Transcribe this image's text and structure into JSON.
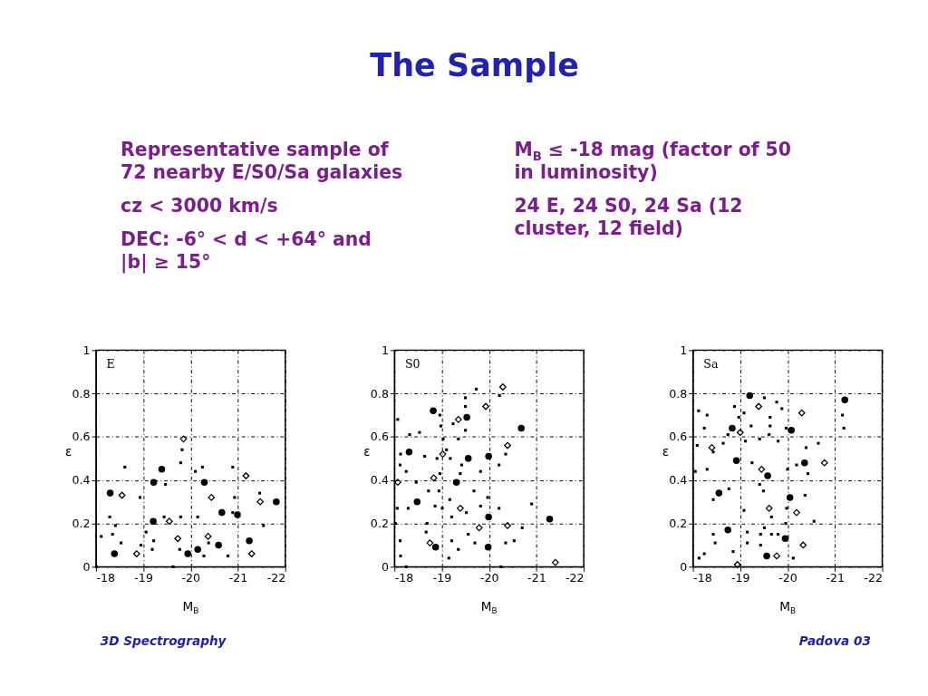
{
  "chart_data": [
    {
      "type": "other",
      "title": "The Sample",
      "annotations": [
        "Representative sample of 72 nearby E/S0/Sa galaxies",
        "cz < 3000 km/s",
        "DEC: -6° < d < +64° and |b| ≥ 15°",
        "M$_{B}$ ≤ -18 mag (factor of 50 in luminosity)",
        "24 E, 24 S0, 24 Sa (12 cluster, 12 field)"
      ]
    },
    {
      "type": "scatter",
      "xlabel": "M$_{B}$",
      "ylabel": "ε",
      "xlim": [
        -18,
        -22
      ],
      "ylim": [
        0,
        1
      ],
      "xticks": [
        -18,
        -19,
        -20,
        -21,
        -22
      ],
      "yticks": [
        0,
        0.2,
        0.4,
        0.6,
        0.8,
        1
      ],
      "grid": true,
      "annotations": [
        "E"
      ],
      "series": [
        {
          "color": "#000000",
          "marker": "circle",
          "x": [
            -18.3,
            -18.39,
            -19.22,
            -19.39,
            -19.21,
            -19.94,
            -20.15,
            -20.29,
            -20.59,
            -20.66,
            -20.99,
            -21.24,
            -21.81
          ],
          "values": [
            0.34,
            0.06,
            0.39,
            0.45,
            0.21,
            0.06,
            0.08,
            0.39,
            0.1,
            0.25,
            0.24,
            0.12,
            0.3
          ]
        },
        {
          "color": "#000000",
          "marker": "diamond",
          "x": [
            -19.85,
            -18.55,
            -18.86,
            -19.55,
            -19.73,
            -20.44,
            -20.37,
            -21.17,
            -21.47,
            -21.29
          ],
          "values": [
            0.59,
            0.33,
            0.06,
            0.21,
            0.13,
            0.32,
            0.14,
            0.42,
            0.3,
            0.06
          ]
        },
        {
          "color": "#000000",
          "marker": "square",
          "x": [
            -18.61,
            -19.82,
            -19.79,
            -20.1,
            -20.25,
            -19.47,
            -18.93,
            -20.89,
            -20.93,
            -21.46,
            -21.54,
            -18.29,
            -18.41,
            -18.11,
            -18.35,
            -18.53,
            -19.06,
            -19.22,
            -19.19,
            -19.44,
            -19.79,
            -19.77,
            -20.15,
            -20.28,
            -20.38,
            -20.79,
            -20.89,
            -18.95,
            -19.63,
            -18.01
          ],
          "values": [
            0.46,
            0.54,
            0.48,
            0.44,
            0.46,
            0.38,
            0.32,
            0.46,
            0.32,
            0.34,
            0.19,
            0.23,
            0.19,
            0.14,
            0.15,
            0.11,
            0.16,
            0.12,
            0.08,
            0.23,
            0.23,
            0.08,
            0.23,
            0.05,
            0.11,
            0.05,
            0.25,
            0.1,
            0.0,
            0.0
          ]
        }
      ]
    },
    {
      "type": "scatter",
      "xlabel": "M$_{B}$",
      "ylabel": "ε",
      "xlim": [
        -18,
        -22
      ],
      "ylim": [
        0,
        1
      ],
      "xticks": [
        -18,
        -19,
        -20,
        -21,
        -22
      ],
      "yticks": [
        0,
        0.2,
        0.4,
        0.6,
        0.8,
        1
      ],
      "grid": true,
      "annotations": [
        "S0"
      ],
      "series": [
        {
          "color": "#000000",
          "marker": "circle",
          "x": [
            -18.82,
            -19.53,
            -19.56,
            -19.99,
            -20.68,
            -18.48,
            -18.31,
            -19.31,
            -19.99,
            -19.98,
            -21.28,
            -18.87
          ],
          "values": [
            0.72,
            0.69,
            0.5,
            0.51,
            0.64,
            0.3,
            0.53,
            0.39,
            0.23,
            0.09,
            0.22,
            0.09
          ]
        },
        {
          "color": "#000000",
          "marker": "diamond",
          "x": [
            -20.29,
            -19.93,
            -19.35,
            -19.02,
            -18.83,
            -18.07,
            -20.39,
            -19.39,
            -19.79,
            -20.39,
            -21.4,
            -18.75
          ],
          "values": [
            0.83,
            0.74,
            0.68,
            0.52,
            0.41,
            0.39,
            0.56,
            0.27,
            0.18,
            0.19,
            0.02,
            0.11
          ]
        },
        {
          "color": "#000000",
          "marker": "square",
          "x": [
            -19.73,
            -19.5,
            -20.22,
            -19.5,
            -18.96,
            -18.98,
            -19.24,
            -19.5,
            -18.32,
            -18.53,
            -19.03,
            -19.35,
            -18.07,
            -18.13,
            -18.64,
            -19.1,
            -18.9,
            -19.18,
            -19.42,
            -20.21,
            -19.82,
            -20.35,
            -18.12,
            -18.25,
            -18.96,
            -19.39,
            -18.46,
            -18.72,
            -18.94,
            -19.17,
            -19.68,
            -19.97,
            -19.82,
            -20.21,
            -18.86,
            -19.01,
            -18.06,
            -18.02,
            -18.29,
            -18.69,
            -19.21,
            -19.52,
            -19.56,
            -19.21,
            -19.7,
            -20.35,
            -20.53,
            -19.15,
            -19.35,
            -20.25,
            -18.12,
            -18.13,
            -20.9,
            -20.7,
            -18.25,
            -18.67
          ],
          "values": [
            0.82,
            0.78,
            0.79,
            0.74,
            0.7,
            0.65,
            0.66,
            0.63,
            0.61,
            0.62,
            0.59,
            0.59,
            0.68,
            0.52,
            0.51,
            0.54,
            0.5,
            0.5,
            0.47,
            0.47,
            0.44,
            0.52,
            0.47,
            0.44,
            0.43,
            0.43,
            0.39,
            0.35,
            0.35,
            0.31,
            0.35,
            0.32,
            0.28,
            0.27,
            0.28,
            0.27,
            0.27,
            0.2,
            0.27,
            0.2,
            0.23,
            0.25,
            0.15,
            0.12,
            0.11,
            0.11,
            0.12,
            0.04,
            0.08,
            0.0,
            0.12,
            0.05,
            0.29,
            0.18,
            0.0,
            0.16
          ]
        }
      ]
    },
    {
      "type": "scatter",
      "xlabel": "M$_{B}$",
      "ylabel": "ε",
      "xlim": [
        -18,
        -22
      ],
      "ylim": [
        0,
        1
      ],
      "xticks": [
        -18,
        -19,
        -20,
        -21,
        -22
      ],
      "yticks": [
        0,
        0.2,
        0.4,
        0.6,
        0.8,
        1
      ],
      "grid": true,
      "annotations": [
        "Sa"
      ],
      "series": [
        {
          "color": "#000000",
          "marker": "circle",
          "x": [
            -19.2,
            -18.83,
            -18.92,
            -18.55,
            -18.74,
            -19.56,
            -19.58,
            -20.08,
            -20.36,
            -20.05,
            -19.95,
            -21.21
          ],
          "values": [
            0.79,
            0.64,
            0.49,
            0.34,
            0.17,
            0.05,
            0.42,
            0.63,
            0.48,
            0.32,
            0.13,
            0.77
          ]
        },
        {
          "color": "#000000",
          "marker": "diamond",
          "x": [
            -19.39,
            -19.0,
            -18.4,
            -19.45,
            -20.3,
            -20.78,
            -19.61,
            -20.19,
            -19.77,
            -20.33,
            -18.94
          ],
          "values": [
            0.74,
            0.62,
            0.55,
            0.45,
            0.71,
            0.48,
            0.27,
            0.25,
            0.05,
            0.1,
            0.01
          ]
        },
        {
          "color": "#000000",
          "marker": "square",
          "x": [
            -18.3,
            -18.12,
            -18.24,
            -18.09,
            -18.43,
            -18.64,
            -18.74,
            -18.88,
            -18.97,
            -19.08,
            -19.23,
            -19.11,
            -19.25,
            -19.41,
            -19.51,
            -19.77,
            -19.88,
            -19.63,
            -19.63,
            -19.61,
            -19.8,
            -19.97,
            -20.0,
            -20.19,
            -20.39,
            -20.43,
            -20.37,
            -20.65,
            -21.16,
            -21.19,
            -19.41,
            -19.49,
            -18.76,
            -18.43,
            -18.05,
            -18.3,
            -19.08,
            -19.15,
            -19.15,
            -19.43,
            -19.51,
            -19.66,
            -19.66,
            -19.8,
            -19.98,
            -19.96,
            -20.12,
            -18.85,
            -18.43,
            -18.47,
            -18.24,
            -18.13,
            -20.56,
            -19.43
          ],
          "values": [
            0.7,
            0.72,
            0.64,
            0.56,
            0.53,
            0.57,
            0.61,
            0.74,
            0.69,
            0.71,
            0.65,
            0.58,
            0.48,
            0.59,
            0.78,
            0.76,
            0.73,
            0.69,
            0.65,
            0.61,
            0.58,
            0.64,
            0.45,
            0.47,
            0.55,
            0.43,
            0.33,
            0.57,
            0.7,
            0.64,
            0.38,
            0.35,
            0.36,
            0.31,
            0.44,
            0.45,
            0.26,
            0.16,
            0.11,
            0.15,
            0.18,
            0.23,
            0.15,
            0.15,
            0.27,
            0.2,
            0.04,
            0.07,
            0.15,
            0.11,
            0.06,
            0.04,
            0.21,
            0.1
          ]
        }
      ]
    },
    {
      "type": "other",
      "annotations": [
        "3D Spectrography",
        "Padova 03"
      ]
    }
  ]
}
